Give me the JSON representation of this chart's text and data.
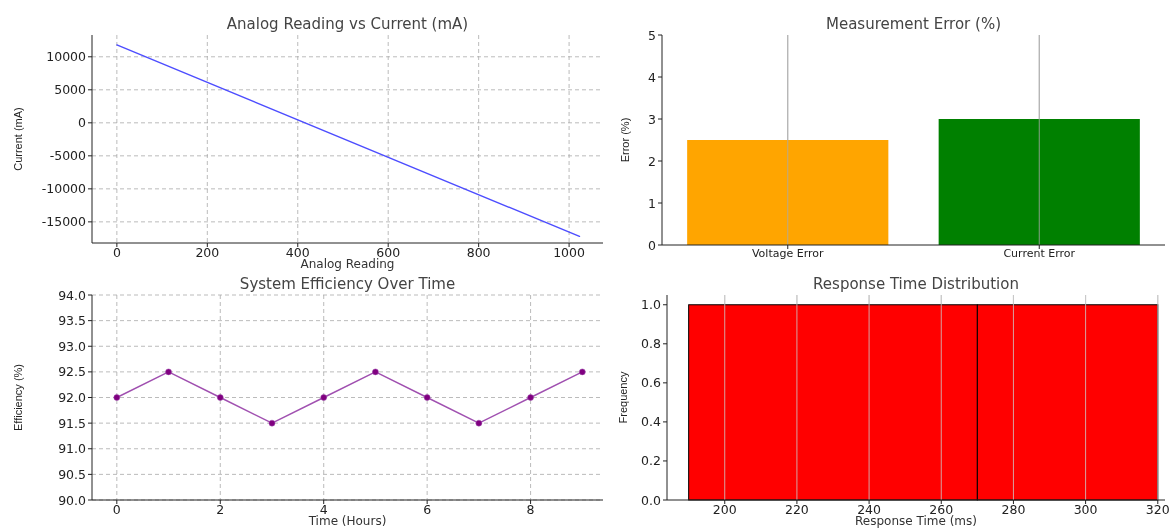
{
  "chart_data": [
    {
      "type": "line",
      "title": "Analog Reading vs Current (mA)",
      "xlabel": "Analog Reading",
      "ylabel": "Current (mA)",
      "series": [
        {
          "color": "#4d4dff",
          "x": [
            0,
            1023
          ],
          "values": [
            11800,
            -17200
          ]
        }
      ],
      "xlim": [
        -55,
        1075
      ],
      "ylim": [
        -18200,
        13300
      ],
      "xticks": [
        0,
        200,
        400,
        600,
        800,
        1000
      ],
      "yticks": [
        -15000,
        -10000,
        -5000,
        0,
        5000,
        10000
      ],
      "grid": true,
      "marker": "none"
    },
    {
      "type": "bar",
      "title": "Measurement Error (%)",
      "ylabel": "Error (%)",
      "categories": [
        "Voltage Error",
        "Current Error"
      ],
      "values": [
        2.5,
        3.0
      ],
      "colors": [
        "#ffa500",
        "#008000"
      ],
      "ylim": [
        0,
        5
      ],
      "yticks": [
        0,
        1,
        2,
        3,
        4,
        5
      ],
      "grid": "x"
    },
    {
      "type": "line",
      "title": "System Efficiency Over Time",
      "xlabel": "Time (Hours)",
      "ylabel": "Efficiency (%)",
      "series": [
        {
          "color": "#a050b0",
          "x": [
            0,
            1,
            2,
            3,
            4,
            5,
            6,
            7,
            8,
            9
          ],
          "values": [
            92,
            92.5,
            92,
            91.5,
            92,
            92.5,
            92,
            91.5,
            92,
            92.5
          ]
        }
      ],
      "xlim": [
        -0.48,
        9.4
      ],
      "ylim": [
        90,
        94
      ],
      "xticks": [
        0,
        2,
        4,
        6,
        8
      ],
      "yticks": [
        {
          "value": 90,
          "label": "90.0"
        },
        {
          "value": 90.5,
          "label": "90.5"
        },
        {
          "value": 91,
          "label": "91.0"
        },
        {
          "value": 91.5,
          "label": "91.5"
        },
        {
          "value": 92,
          "label": "92.0"
        },
        {
          "value": 92.5,
          "label": "92.5"
        },
        {
          "value": 93,
          "label": "93.0"
        },
        {
          "value": 93.5,
          "label": "93.5"
        },
        {
          "value": 94,
          "label": "94.0"
        }
      ],
      "grid": true,
      "marker": "circle"
    },
    {
      "type": "histogram",
      "title": "Response Time Distribution",
      "xlabel": "Response Time (ms)",
      "ylabel": "Frequency",
      "bins": [
        190,
        270,
        320
      ],
      "values": [
        1,
        1
      ],
      "color": "#ff0000",
      "xlim": [
        184,
        322
      ],
      "ylim": [
        0,
        1.05
      ],
      "xticks": [
        200,
        220,
        240,
        260,
        280,
        300,
        320
      ],
      "yticks": [
        {
          "value": 0,
          "label": "0.0"
        },
        {
          "value": 0.2,
          "label": "0.2"
        },
        {
          "value": 0.4,
          "label": "0.4"
        },
        {
          "value": 0.6,
          "label": "0.6"
        },
        {
          "value": 0.8,
          "label": "0.8"
        },
        {
          "value": 1,
          "label": "1.0"
        }
      ],
      "grid": "x"
    }
  ]
}
